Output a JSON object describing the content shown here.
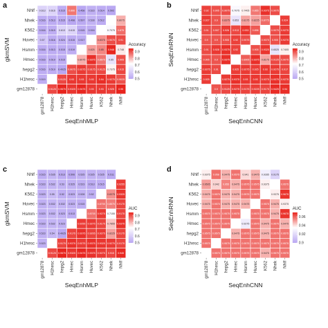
{
  "colors": {
    "low": "#b9a7f2",
    "mid": "#ffffff",
    "high": "#e8241d"
  },
  "chart_data": [
    {
      "panel": "a",
      "type": "heatmap",
      "row_labels": [
        "Nhlf",
        "Nhek",
        "K562",
        "Huvec",
        "Hsmm",
        "Hmec",
        "hepg2",
        "H1hesc",
        "gm12878"
      ],
      "col_labels": [
        "gm12878",
        "H1hesc",
        "hepg2",
        "Hmec",
        "Hsmm",
        "Huvec",
        "K562",
        "Nhek",
        "Nhlf"
      ],
      "ylabel": "gkmSVM",
      "xlabel": "SeqEnhMLP",
      "legend_title": "Accuracy",
      "legend_ticks": [
        0.9,
        0.8,
        0.7,
        0.6,
        0.5
      ],
      "scale": [
        0.5,
        0.95
      ],
      "matrix": [
        [
          0.613,
          0.616,
          0.515,
          0.866,
          0.458,
          0.523,
          0.514,
          0.502,
          null
        ],
        [
          0.516,
          0.513,
          0.515,
          0.498,
          0.507,
          0.528,
          0.512,
          null,
          0.8075
        ],
        [
          0.516,
          0.519,
          0.613,
          0.615,
          0.515,
          0.516,
          null,
          0.7075,
          0.875
        ],
        [
          0.57,
          0.516,
          0.524,
          0.515,
          0.517,
          null,
          0.8375,
          0.9075,
          0.91
        ],
        [
          0.516,
          0.513,
          0.515,
          0.519,
          null,
          0.825,
          0.85,
          0.948,
          0.748
        ],
        [
          0.516,
          0.519,
          0.515,
          null,
          0.8075,
          0.9375,
          0.8675,
          0.65,
          0.905
        ],
        [
          0.516,
          0.519,
          0.4925,
          0.9075,
          0.9275,
          0.9175,
          0.9125,
          0.7375,
          0.915
        ],
        [
          0.519,
          null,
          0.9125,
          0.93,
          0.93,
          0.93,
          0.94,
          0.9275,
          0.9025
        ],
        [
          null,
          0.9125,
          0.9575,
          0.9325,
          0.9475,
          0.93,
          0.93,
          0.925,
          0.95
        ]
      ]
    },
    {
      "panel": "b",
      "type": "heatmap",
      "row_labels": [
        "Nhlf",
        "Nhek",
        "K562",
        "Huvec",
        "Hsmm",
        "Hmec",
        "hepg2",
        "H1hesc",
        "gm12878"
      ],
      "col_labels": [
        "gm12878",
        "H1hesc",
        "hepg2",
        "Hmec",
        "Hsmm",
        "Huvec",
        "K562",
        "Nhek",
        "Nhlf"
      ],
      "ylabel": "SeqEnhRNN",
      "xlabel": "SeqEnhCNN",
      "legend_title": "Accuracy",
      "legend_ticks": [
        0.9,
        0.8,
        0.7,
        0.6,
        0.5
      ],
      "scale": [
        0.5,
        0.95
      ],
      "matrix": [
        [
          0.92,
          0.905,
          0.9075,
          0.7075,
          0.7405,
          0.865,
          0.9375,
          0.9075,
          null
        ],
        [
          0.927,
          0.9,
          0.8375,
          0.653,
          0.8175,
          0.8225,
          0.8775,
          null,
          0.924
        ],
        [
          0.91,
          0.907,
          0.926,
          0.913,
          0.933,
          0.896,
          null,
          0.9075,
          0.9275
        ],
        [
          0.9,
          0.9,
          0.905,
          0.92,
          0.9075,
          null,
          0.9075,
          0.905,
          0.9275
        ],
        [
          0.91,
          0.928,
          0.9375,
          0.92,
          null,
          0.905,
          0.9325,
          0.6525,
          0.7405
        ],
        [
          0.905,
          0.9,
          0.9375,
          null,
          0.8905,
          0.9375,
          0.8175,
          0.9125,
          0.9075
        ],
        [
          0.9275,
          0.91,
          null,
          0.925,
          0.9275,
          0.925,
          0.93,
          0.9275,
          0.917
        ],
        [
          0.925,
          null,
          0.9275,
          0.9375,
          0.93,
          0.93,
          0.9275,
          0.9375,
          0.9275
        ],
        [
          null,
          0.9,
          0.9125,
          0.9275,
          0.9175,
          0.9225,
          0.9175,
          0.9425,
          0.94
        ]
      ]
    },
    {
      "panel": "c",
      "type": "heatmap",
      "row_labels": [
        "Nhlf",
        "Nhek",
        "K562",
        "Huvec",
        "Hsmm",
        "Hmec",
        "hepg2",
        "H1hesc",
        "gm12878"
      ],
      "col_labels": [
        "gm12878",
        "H1hesc",
        "hepg2",
        "Hmec",
        "Hsmm",
        "Huvec",
        "K562",
        "Nhek",
        "Nhlf"
      ],
      "ylabel": "gkmSVM",
      "xlabel": "SeqEnhMLP",
      "legend_title": "AUC",
      "legend_ticks": [
        0.9,
        0.8,
        0.7,
        0.6,
        0.5
      ],
      "scale": [
        0.5,
        0.95
      ],
      "matrix": [
        [
          0.515,
          0.535,
          0.513,
          0.506,
          0.525,
          0.525,
          0.525,
          0.511,
          null
        ],
        [
          0.523,
          0.532,
          0.53,
          0.525,
          0.523,
          0.513,
          0.515,
          null,
          0.9255
        ],
        [
          0.523,
          0.55,
          0.52,
          0.523,
          0.528,
          0.52,
          null,
          0.8375,
          0.9325
        ],
        [
          0.523,
          0.532,
          0.532,
          0.523,
          0.515,
          null,
          0.8705,
          0.8575,
          0.9175
        ],
        [
          0.523,
          0.532,
          0.523,
          0.513,
          null,
          0.8705,
          0.9275,
          0.7155,
          0.9175
        ],
        [
          0.523,
          0.532,
          0.523,
          null,
          0.9255,
          0.9275,
          0.9175,
          0.7855,
          0.9375
        ],
        [
          0.523,
          0.54,
          0.4925,
          0.9175,
          0.9375,
          0.9205,
          0.9275,
          0.8225,
          0.9175
        ],
        [
          0.523,
          null,
          0.9175,
          0.9375,
          0.9275,
          0.9375,
          0.9325,
          0.9275,
          0.9175
        ],
        [
          null,
          0.9125,
          0.9575,
          0.9325,
          0.9475,
          0.9375,
          0.9275,
          0.915,
          0.945
        ]
      ]
    },
    {
      "panel": "d",
      "type": "heatmap",
      "row_labels": [
        "Nhlf",
        "Nhek",
        "K562",
        "Huvec",
        "Hsmm",
        "Hmec",
        "hepg2",
        "H1hesc",
        "gm12878"
      ],
      "col_labels": [
        "gm12878",
        "H1hesc",
        "hepg2",
        "Hmec",
        "Hsmm",
        "Huvec",
        "K562",
        "Nhek",
        "Nhlf"
      ],
      "ylabel": "SeqEnhRNN",
      "xlabel": "SeqEnhCNN",
      "legend_title": "AUC",
      "legend_ticks": [
        0.96,
        0.94,
        0.92,
        0.9
      ],
      "scale": [
        0.9,
        0.97
      ],
      "matrix": [
        [
          0.9375,
          0.958,
          0.9475,
          0.9575,
          0.941,
          0.9475,
          0.9285,
          0.9175,
          null
        ],
        [
          0.9505,
          0.942,
          0.955,
          0.9475,
          0.9575,
          0.9575,
          0.9375,
          null,
          0.9575
        ],
        [
          0.9475,
          0.9575,
          0.9475,
          0.9475,
          0.9575,
          0.9575,
          null,
          0.9375,
          0.9675
        ],
        [
          0.9475,
          0.9575,
          0.9475,
          0.9475,
          0.9475,
          null,
          0.9575,
          0.9475,
          0.9375
        ],
        [
          0.9575,
          0.9575,
          0.9575,
          0.9575,
          null,
          0.9575,
          0.9575,
          0.9475,
          0.9675
        ],
        [
          0.9575,
          0.9575,
          0.9575,
          null,
          0.9275,
          0.9575,
          0.9475,
          0.9575,
          0.9475
        ],
        [
          0.9575,
          0.9575,
          null,
          0.9475,
          0.9575,
          0.9575,
          0.9475,
          0.9575,
          0.9575
        ],
        [
          0.9575,
          null,
          0.9575,
          0.9575,
          0.9575,
          0.9575,
          0.9575,
          0.9575,
          0.9575
        ],
        [
          null,
          0.9575,
          0.9575,
          0.9575,
          0.9575,
          0.9575,
          0.9475,
          0.9575,
          0.9575
        ]
      ]
    }
  ]
}
